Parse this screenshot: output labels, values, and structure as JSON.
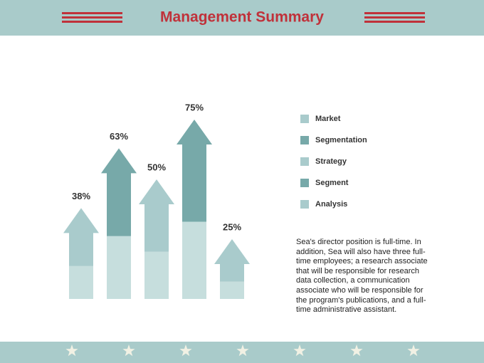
{
  "header": {
    "title": "Management Summary"
  },
  "chart_data": {
    "type": "arrow-bar",
    "categories": [
      "Market",
      "Segmentation",
      "Strategy",
      "Segment",
      "Analysis"
    ],
    "values": [
      38,
      63,
      50,
      75,
      25
    ],
    "value_labels": [
      "38%",
      "63%",
      "50%",
      "75%",
      "25%"
    ],
    "colors": [
      "#a9cbcc",
      "#77a9a9",
      "#a9cbcc",
      "#77a9a9",
      "#a9cbcc"
    ]
  },
  "body_text": "Sea's director position is full-time.  In addition, Sea will also have three full-time employees; a research associate that will be responsible for research data collection, a communication associate who will be responsible for the program's publications, and a full-time administrative assistant."
}
